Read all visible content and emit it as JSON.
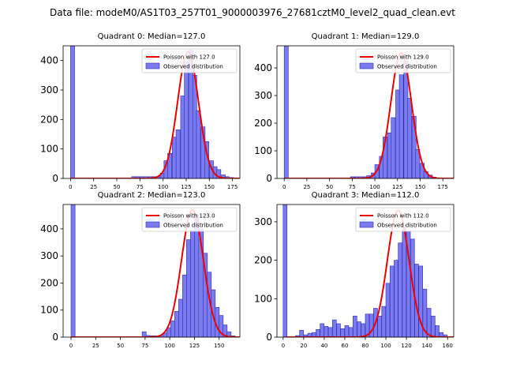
{
  "figure_title": "Data file: modeM0/AS1T03_257T01_9000003976_27681cztM0_level2_quad_clean.evt",
  "colors": {
    "bar_fill": "#7b7bf0",
    "bar_edge": "#2a2ab0",
    "poisson_line": "#ee0000",
    "axis": "#000000"
  },
  "chart_data": [
    {
      "type": "bar",
      "title": "Quadrant 0: Median=127.0",
      "median": 127.0,
      "xlim": [
        -8,
        183
      ],
      "ylim": [
        0,
        450
      ],
      "xticks": [
        0,
        25,
        50,
        75,
        100,
        125,
        150,
        175
      ],
      "yticks": [
        0,
        100,
        200,
        300,
        400
      ],
      "bin_width": 4.4,
      "bars": [
        [
          0,
          450
        ],
        [
          66,
          6
        ],
        [
          70,
          6
        ],
        [
          75,
          6
        ],
        [
          79,
          6
        ],
        [
          84,
          6
        ],
        [
          88,
          6
        ],
        [
          92,
          6
        ],
        [
          97,
          18
        ],
        [
          101,
          60
        ],
        [
          105,
          85
        ],
        [
          110,
          140
        ],
        [
          114,
          165
        ],
        [
          119,
          280
        ],
        [
          123,
          395
        ],
        [
          128,
          435
        ],
        [
          132,
          350
        ],
        [
          136,
          230
        ],
        [
          141,
          175
        ],
        [
          145,
          125
        ],
        [
          150,
          60
        ],
        [
          154,
          40
        ],
        [
          158,
          30
        ],
        [
          163,
          12
        ],
        [
          167,
          6
        ],
        [
          172,
          3
        ]
      ],
      "poisson_lambda": 127.0,
      "poisson_peak": 430,
      "legend": [
        "Poisson with 127.0",
        "Observed distribution"
      ]
    },
    {
      "type": "bar",
      "title": "Quadrant 1: Median=129.0",
      "median": 129.0,
      "xlim": [
        -8,
        187
      ],
      "ylim": [
        0,
        480
      ],
      "xticks": [
        0,
        25,
        50,
        75,
        100,
        125,
        150,
        175
      ],
      "yticks": [
        0,
        100,
        200,
        300,
        400
      ],
      "bin_width": 4.5,
      "bars": [
        [
          0,
          480
        ],
        [
          73,
          6
        ],
        [
          78,
          6
        ],
        [
          82,
          6
        ],
        [
          87,
          6
        ],
        [
          91,
          10
        ],
        [
          96,
          20
        ],
        [
          100,
          50
        ],
        [
          105,
          80
        ],
        [
          109,
          150
        ],
        [
          114,
          165
        ],
        [
          118,
          220
        ],
        [
          123,
          320
        ],
        [
          127,
          375
        ],
        [
          132,
          425
        ],
        [
          136,
          290
        ],
        [
          141,
          225
        ],
        [
          145,
          105
        ],
        [
          150,
          55
        ],
        [
          154,
          25
        ],
        [
          159,
          12
        ],
        [
          163,
          5
        ]
      ],
      "poisson_lambda": 129.0,
      "poisson_peak": 455,
      "legend": [
        "Poisson with 129.0",
        "Observed distribution"
      ]
    },
    {
      "type": "bar",
      "title": "Quadrant 2: Median=123.0",
      "median": 123.0,
      "xlim": [
        -8,
        171
      ],
      "ylim": [
        0,
        490
      ],
      "xticks": [
        0,
        25,
        50,
        75,
        100,
        125,
        150
      ],
      "yticks": [
        0,
        100,
        200,
        300,
        400
      ],
      "bin_width": 4.1,
      "bars": [
        [
          0,
          490
        ],
        [
          72,
          20
        ],
        [
          76,
          6
        ],
        [
          80,
          5
        ],
        [
          84,
          5
        ],
        [
          88,
          5
        ],
        [
          93,
          15
        ],
        [
          97,
          35
        ],
        [
          101,
          60
        ],
        [
          105,
          95
        ],
        [
          109,
          140
        ],
        [
          113,
          230
        ],
        [
          117,
          360
        ],
        [
          121,
          395
        ],
        [
          125,
          455
        ],
        [
          130,
          400
        ],
        [
          134,
          310
        ],
        [
          138,
          240
        ],
        [
          142,
          175
        ],
        [
          146,
          110
        ],
        [
          150,
          80
        ],
        [
          154,
          45
        ],
        [
          158,
          20
        ],
        [
          162,
          5
        ]
      ],
      "poisson_lambda": 123.0,
      "poisson_peak": 470,
      "legend": [
        "Poisson with 123.0",
        "Observed distribution"
      ]
    },
    {
      "type": "bar",
      "title": "Quadrant 3: Median=112.0",
      "median": 112.0,
      "xlim": [
        -6,
        166
      ],
      "ylim": [
        0,
        345
      ],
      "xticks": [
        0,
        20,
        40,
        60,
        80,
        100,
        120,
        140,
        160
      ],
      "yticks": [
        0,
        100,
        200,
        300
      ],
      "bin_width": 3.8,
      "bars": [
        [
          0,
          345
        ],
        [
          12,
          4
        ],
        [
          16,
          18
        ],
        [
          20,
          6
        ],
        [
          24,
          10
        ],
        [
          28,
          12
        ],
        [
          32,
          20
        ],
        [
          36,
          35
        ],
        [
          40,
          28
        ],
        [
          44,
          25
        ],
        [
          48,
          45
        ],
        [
          52,
          35
        ],
        [
          56,
          22
        ],
        [
          60,
          30
        ],
        [
          64,
          25
        ],
        [
          68,
          55
        ],
        [
          72,
          40
        ],
        [
          76,
          35
        ],
        [
          80,
          60
        ],
        [
          84,
          60
        ],
        [
          88,
          75
        ],
        [
          92,
          55
        ],
        [
          96,
          80
        ],
        [
          100,
          140
        ],
        [
          104,
          185
        ],
        [
          108,
          200
        ],
        [
          112,
          245
        ],
        [
          116,
          290
        ],
        [
          120,
          275
        ],
        [
          124,
          255
        ],
        [
          128,
          190
        ],
        [
          132,
          185
        ],
        [
          136,
          125
        ],
        [
          140,
          75
        ],
        [
          144,
          55
        ],
        [
          148,
          30
        ],
        [
          152,
          12
        ],
        [
          156,
          6
        ]
      ],
      "poisson_lambda": 112.0,
      "poisson_peak": 330,
      "legend": [
        "Poisson with 112.0",
        "Observed distribution"
      ]
    }
  ]
}
